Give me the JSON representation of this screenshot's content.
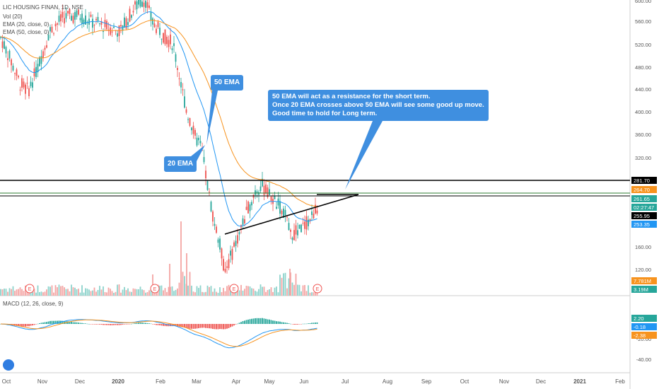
{
  "header": {
    "symbol": "LIC HOUSING FINAN, 1D, NSE",
    "vol": "Vol (20)",
    "ema20": "EMA (20, close, 0)",
    "ema50": "EMA (50, close, 0)",
    "macd": "MACD (12, 26, close, 9)"
  },
  "annotations": {
    "ema50_label": "50 EMA",
    "ema20_label": "20 EMA",
    "note_lines": [
      "50 EMA will act as a resistance for the short term.",
      "Once 20 EMA crosses above 50 EMA will see some good up move.",
      "Good time to hold for Long term."
    ]
  },
  "colors": {
    "up": "#26a69a",
    "down": "#ef5350",
    "ema20": "#2196f3",
    "ema50": "#f7931e",
    "vol_up": "#8dd3cc",
    "vol_down": "#f4a5a4",
    "callout": "#3f8fe0",
    "level_line": "#000000"
  },
  "chart_data": {
    "type": "candlestick",
    "x_axis": [
      "Oct",
      "Nov",
      "Dec",
      "2020",
      "Feb",
      "Mar",
      "Apr",
      "May",
      "Jun",
      "Jul",
      "Aug",
      "Sep",
      "Oct",
      "Nov",
      "Dec",
      "2021",
      "Feb"
    ],
    "price_axis": [
      "600.00",
      "560.00",
      "520.00",
      "480.00",
      "440.00",
      "400.00",
      "360.00",
      "320.00",
      "160.00",
      "120.00"
    ],
    "price_ylim": [
      140,
      600
    ],
    "macd_axis": [
      "-20.00",
      "-40.00"
    ],
    "macd_ylim": [
      -48,
      18
    ],
    "price_badges": [
      {
        "text": "281.70",
        "bg": "#000000"
      },
      {
        "text": "264.70",
        "bg": "#f7931e"
      },
      {
        "text": "261.65",
        "bg": "#26a69a"
      },
      {
        "text": "02:27:47",
        "bg": "#26a69a"
      },
      {
        "text": "255.95",
        "bg": "#000000"
      },
      {
        "text": "253.35",
        "bg": "#2196f3"
      }
    ],
    "volume_badges": [
      {
        "text": "7.781M",
        "bg": "#f7931e"
      },
      {
        "text": "3.19M",
        "bg": "#26a69a"
      }
    ],
    "macd_badges": [
      {
        "text": "2.20",
        "bg": "#26a69a"
      },
      {
        "text": "-0.18",
        "bg": "#2196f3"
      },
      {
        "text": "-2.38",
        "bg": "#f7931e"
      }
    ],
    "events": [
      "E",
      "E",
      "E",
      "E",
      "E"
    ],
    "levels": [
      281.7,
      261.65,
      255.95
    ],
    "trendline": {
      "from": [
        "Mar",
        185
      ],
      "to": [
        "Jul",
        262
      ]
    },
    "ohlc_note": "Daily candles from Oct 2019 to Jun 2020 (approximated)"
  }
}
